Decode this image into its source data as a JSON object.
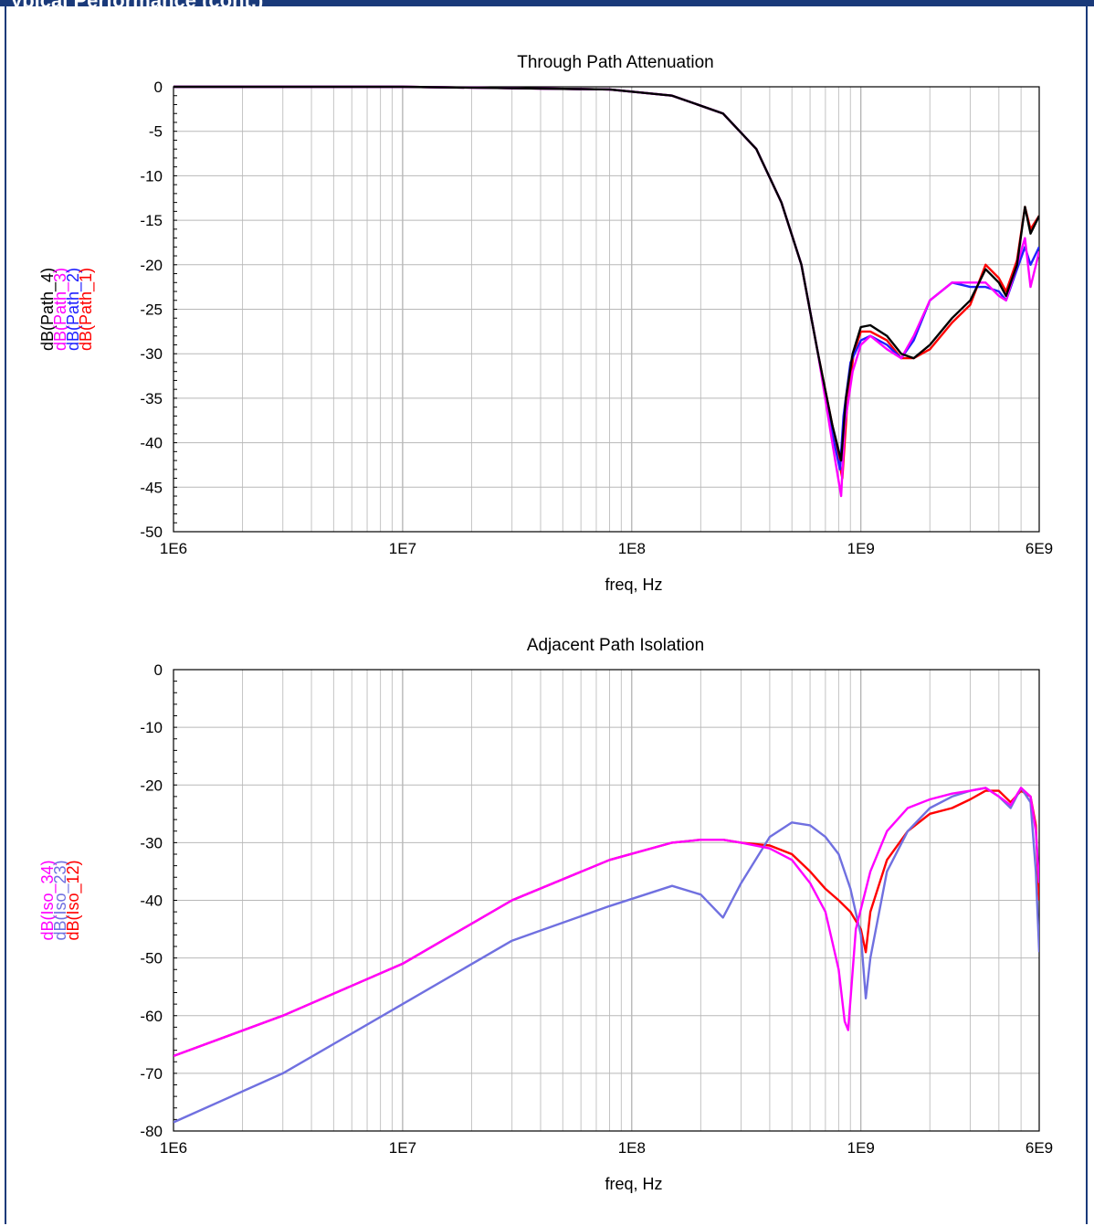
{
  "header": {
    "title": "ypical Performance (cont.)"
  },
  "chart_data": [
    {
      "type": "line",
      "title": "Through Path Attenuation",
      "xlabel": "freq, Hz",
      "x_scale": "log",
      "xlim": [
        1000000,
        6000000000
      ],
      "ylim": [
        -50,
        0
      ],
      "x_ticks": [
        1000000,
        10000000,
        100000000,
        1000000000,
        6000000000
      ],
      "x_tick_labels": [
        "1E6",
        "1E7",
        "1E8",
        "1E9",
        "6E9"
      ],
      "y_ticks": [
        0,
        -5,
        -10,
        -15,
        -20,
        -25,
        -30,
        -35,
        -40,
        -45,
        -50
      ],
      "grid": true,
      "series": [
        {
          "name": "dB(Path_4)",
          "color": "#000000",
          "x": [
            1000000,
            10000000,
            80000000,
            150000000,
            250000000,
            350000000,
            450000000,
            550000000,
            650000000,
            750000000,
            820000000,
            860000000,
            920000000,
            1000000000,
            1100000000,
            1300000000,
            1500000000,
            1700000000,
            2000000000,
            2500000000,
            3000000000,
            3500000000,
            4000000000,
            4300000000,
            4800000000,
            5200000000,
            5500000000,
            6000000000
          ],
          "y": [
            0,
            0,
            -0.3,
            -1,
            -3,
            -7,
            -13,
            -20,
            -30,
            -38,
            -42,
            -35,
            -30,
            -27,
            -26.8,
            -28,
            -30,
            -30.5,
            -29,
            -26,
            -24,
            -20.5,
            -22,
            -23.5,
            -20,
            -13.5,
            -16.5,
            -14.5
          ]
        },
        {
          "name": "dB(Path_3)",
          "color": "#ff00ff",
          "x": [
            1000000,
            10000000,
            80000000,
            150000000,
            250000000,
            350000000,
            450000000,
            550000000,
            650000000,
            750000000,
            820000000,
            850000000,
            920000000,
            1000000000,
            1100000000,
            1300000000,
            1500000000,
            1700000000,
            2000000000,
            2500000000,
            3000000000,
            3500000000,
            4000000000,
            4300000000,
            4800000000,
            5200000000,
            5500000000,
            6000000000
          ],
          "y": [
            0,
            0,
            -0.3,
            -1,
            -3,
            -7,
            -13,
            -20,
            -30,
            -40,
            -46,
            -38,
            -32,
            -29,
            -28,
            -29.5,
            -30.5,
            -28,
            -24,
            -22,
            -22,
            -22,
            -23.5,
            -24,
            -20,
            -17,
            -22.5,
            -18.5
          ]
        },
        {
          "name": "dB(Path_2)",
          "color": "#2020ff",
          "x": [
            1000000,
            10000000,
            80000000,
            150000000,
            250000000,
            350000000,
            450000000,
            550000000,
            650000000,
            750000000,
            810000000,
            840000000,
            900000000,
            1000000000,
            1100000000,
            1300000000,
            1500000000,
            1700000000,
            2000000000,
            2500000000,
            3000000000,
            3500000000,
            4000000000,
            4300000000,
            4800000000,
            5200000000,
            5500000000,
            6000000000
          ],
          "y": [
            0,
            0,
            -0.3,
            -1,
            -3,
            -7,
            -13,
            -20,
            -30,
            -39,
            -43,
            -37,
            -31,
            -28.5,
            -28,
            -29,
            -30.5,
            -28.5,
            -24,
            -22,
            -22.5,
            -22.5,
            -23,
            -24,
            -20.5,
            -18,
            -20,
            -18
          ]
        },
        {
          "name": "dB(Path_1)",
          "color": "#ff0000",
          "x": [
            1000000,
            10000000,
            80000000,
            150000000,
            250000000,
            350000000,
            450000000,
            550000000,
            650000000,
            750000000,
            830000000,
            870000000,
            930000000,
            1000000000,
            1100000000,
            1300000000,
            1500000000,
            1700000000,
            2000000000,
            2500000000,
            3000000000,
            3500000000,
            4000000000,
            4300000000,
            4800000000,
            5200000000,
            5500000000,
            6000000000
          ],
          "y": [
            0,
            0,
            -0.3,
            -1,
            -3,
            -7,
            -13,
            -20,
            -30,
            -38,
            -44,
            -36,
            -30,
            -27.5,
            -27.5,
            -28.5,
            -30.5,
            -30.5,
            -29.5,
            -26.5,
            -24.5,
            -20,
            -21.5,
            -23,
            -19.5,
            -13.5,
            -16,
            -14.5
          ]
        }
      ]
    },
    {
      "type": "line",
      "title": "Adjacent Path Isolation",
      "xlabel": "freq, Hz",
      "x_scale": "log",
      "xlim": [
        1000000,
        6000000000
      ],
      "ylim": [
        -80,
        0
      ],
      "x_ticks": [
        1000000,
        10000000,
        100000000,
        1000000000,
        6000000000
      ],
      "x_tick_labels": [
        "1E6",
        "1E7",
        "1E8",
        "1E9",
        "6E9"
      ],
      "y_ticks": [
        0,
        -10,
        -20,
        -30,
        -40,
        -50,
        -60,
        -70,
        -80
      ],
      "grid": true,
      "series": [
        {
          "name": "dB(Iso_34)",
          "color": "#ff00ff",
          "x": [
            1000000,
            3000000,
            10000000,
            30000000,
            80000000,
            150000000,
            200000000,
            250000000,
            300000000,
            400000000,
            500000000,
            600000000,
            700000000,
            800000000,
            850000000,
            880000000,
            950000000,
            1100000000,
            1300000000,
            1600000000,
            2000000000,
            2500000000,
            3000000000,
            3500000000,
            4000000000,
            4500000000,
            5000000000,
            5500000000,
            5800000000,
            6000000000
          ],
          "y": [
            -67,
            -60,
            -51,
            -40,
            -33,
            -30,
            -29.5,
            -29.5,
            -30,
            -31,
            -33,
            -37,
            -42,
            -52,
            -61,
            -62.5,
            -45,
            -35,
            -28,
            -24,
            -22.5,
            -21.5,
            -21,
            -20.5,
            -22,
            -23.5,
            -20.5,
            -22,
            -28,
            -37
          ]
        },
        {
          "name": "dB(Iso_23)",
          "color": "#7070e0",
          "x": [
            1000000,
            3000000,
            10000000,
            30000000,
            80000000,
            150000000,
            200000000,
            250000000,
            300000000,
            400000000,
            500000000,
            600000000,
            700000000,
            800000000,
            900000000,
            1000000000,
            1050000000,
            1100000000,
            1300000000,
            1600000000,
            2000000000,
            2500000000,
            3000000000,
            3500000000,
            4000000000,
            4500000000,
            5000000000,
            5500000000,
            5800000000,
            6000000000
          ],
          "y": [
            -78.5,
            -70,
            -58,
            -47,
            -41,
            -37.5,
            -39,
            -43,
            -37,
            -29,
            -26.5,
            -27,
            -29,
            -32,
            -38,
            -46,
            -57,
            -50,
            -35,
            -28,
            -24,
            -22,
            -21,
            -20.5,
            -22,
            -24,
            -20.5,
            -23,
            -35,
            -49
          ]
        },
        {
          "name": "dB(Iso_12)",
          "color": "#ff0000",
          "x": [
            1000000,
            3000000,
            10000000,
            30000000,
            80000000,
            150000000,
            200000000,
            250000000,
            300000000,
            400000000,
            500000000,
            600000000,
            700000000,
            800000000,
            900000000,
            1000000000,
            1050000000,
            1100000000,
            1300000000,
            1600000000,
            2000000000,
            2500000000,
            3000000000,
            3500000000,
            4000000000,
            4500000000,
            5000000000,
            5500000000,
            5800000000,
            6000000000
          ],
          "y": [
            -67,
            -60,
            -51,
            -40,
            -33,
            -30,
            -29.5,
            -29.5,
            -30,
            -30.5,
            -32,
            -35,
            -38,
            -40,
            -42,
            -45,
            -49,
            -42,
            -33,
            -28,
            -25,
            -24,
            -22.5,
            -21,
            -21,
            -23,
            -21,
            -22,
            -27,
            -40
          ]
        }
      ]
    }
  ]
}
